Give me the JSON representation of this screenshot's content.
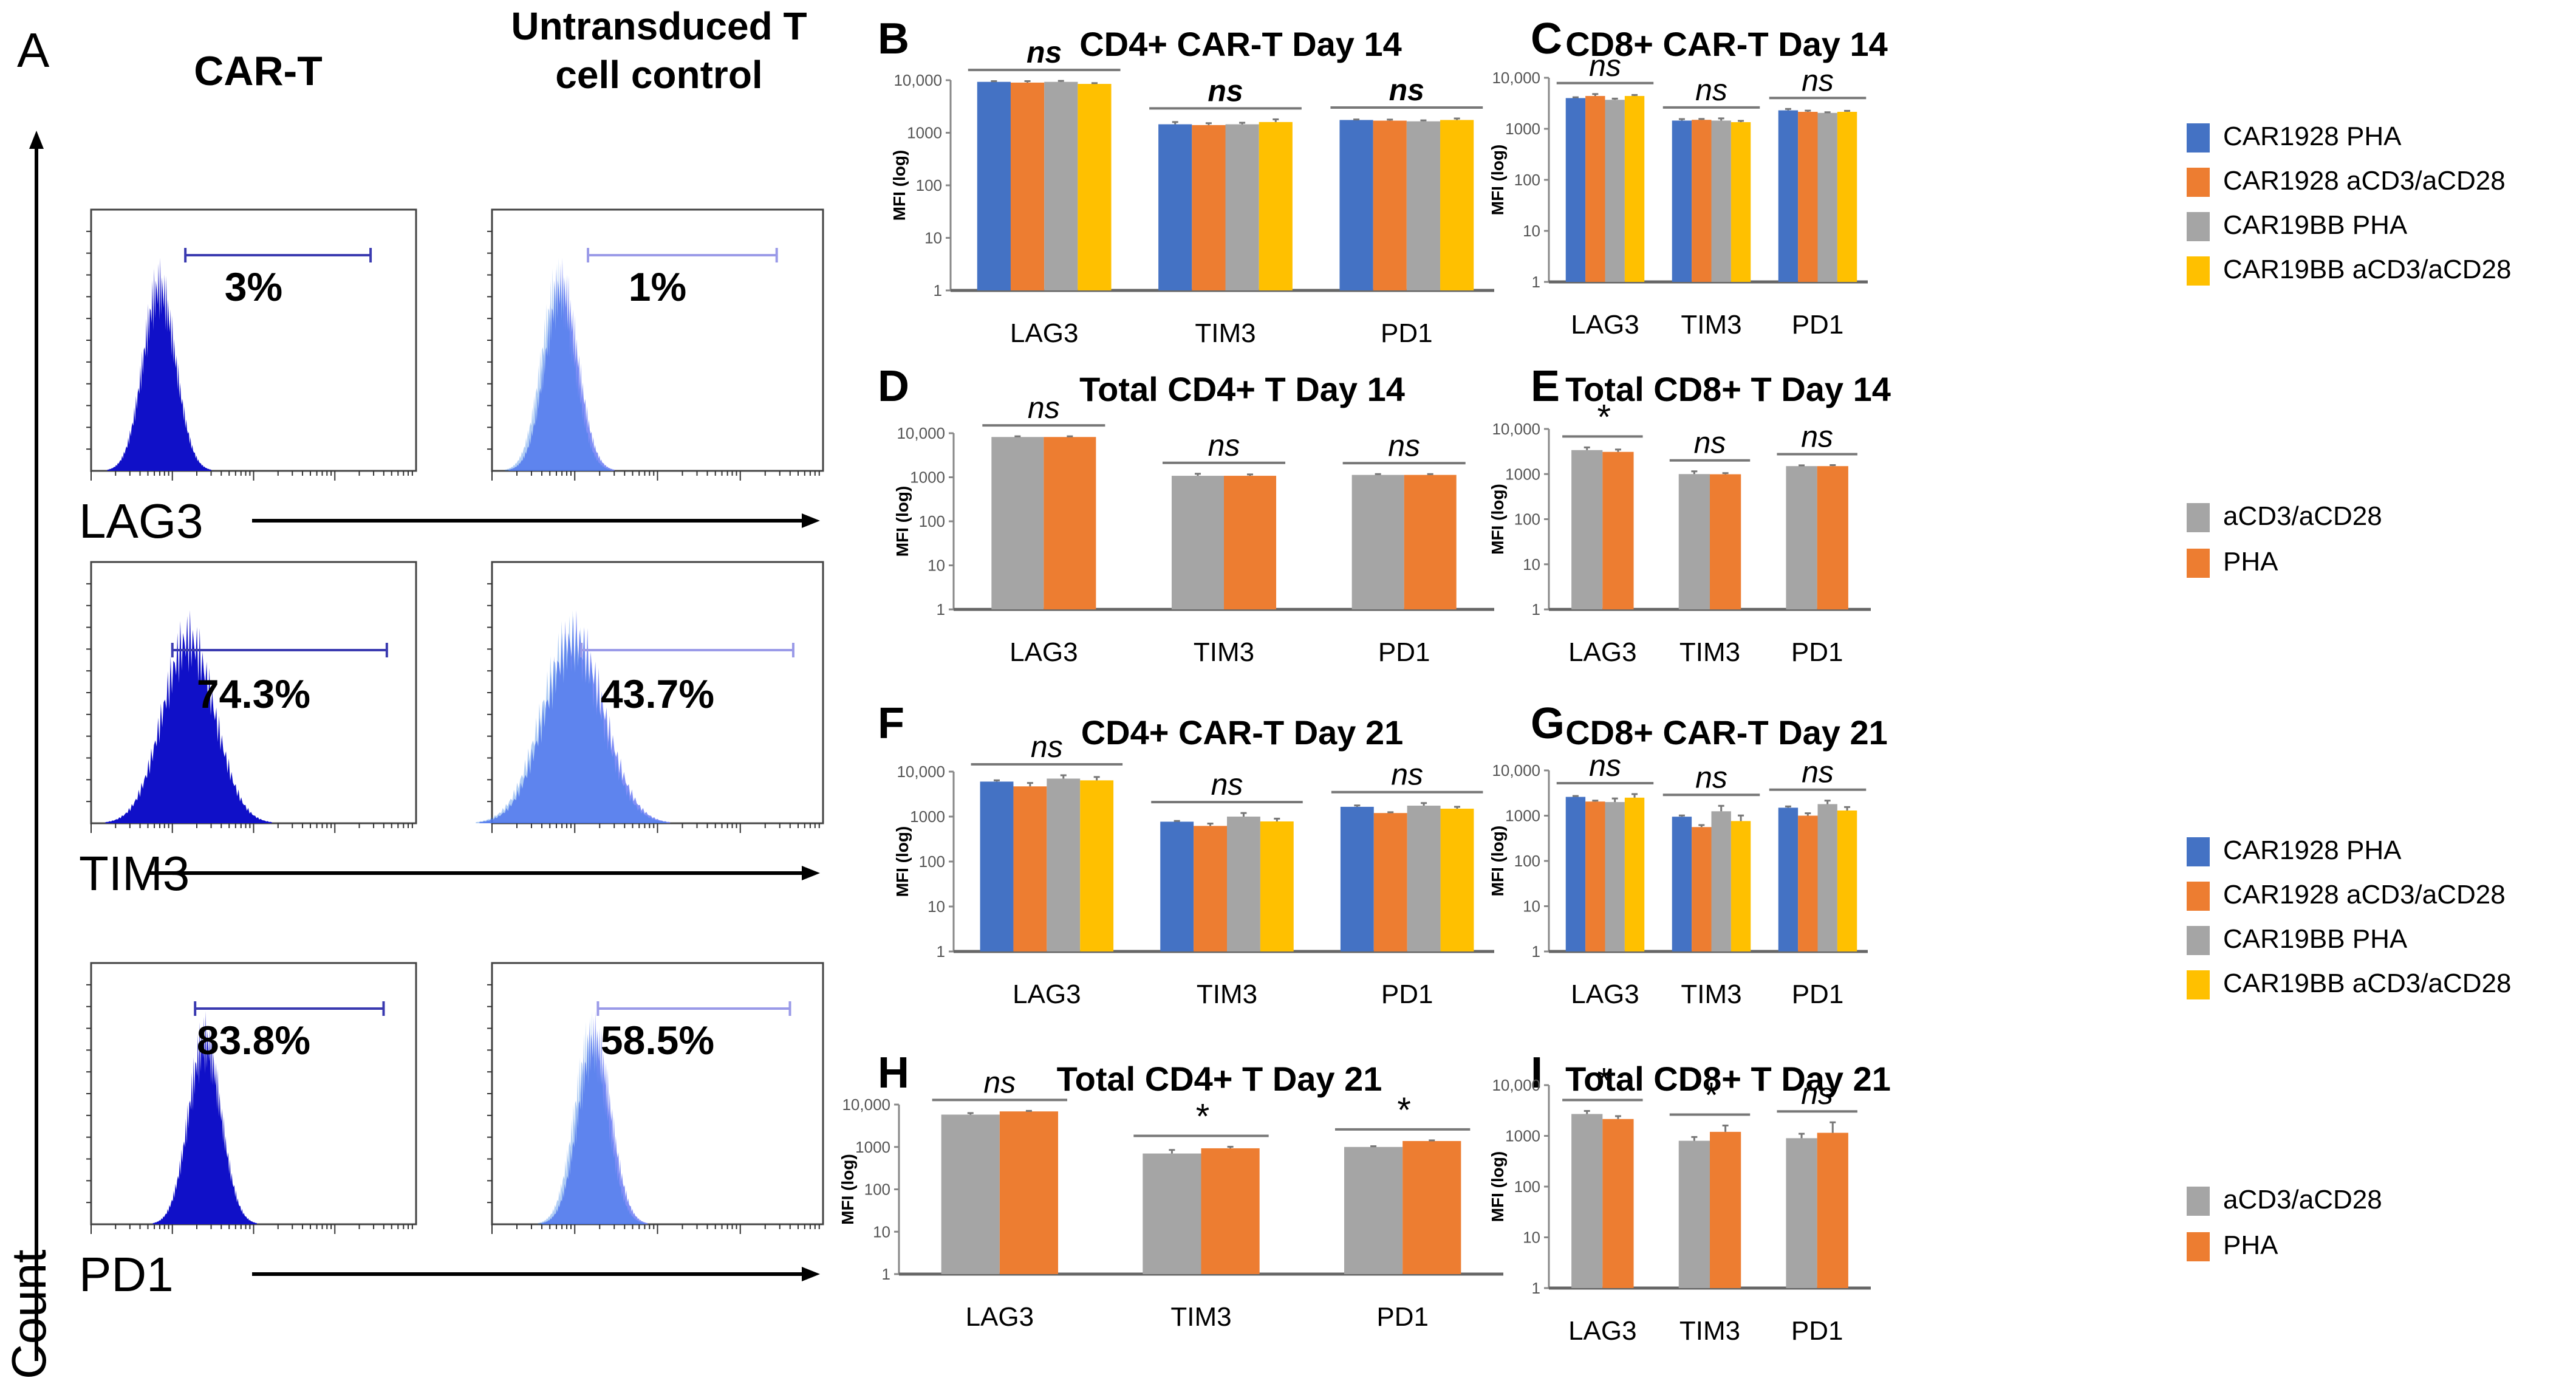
{
  "figure": {
    "panel_a": {
      "letter": "A",
      "col_headers": [
        "CAR-T",
        "Untransduced T cell control"
      ],
      "col_header_lines": [
        [
          "CAR-T"
        ],
        [
          "Untransduced T",
          "cell control"
        ]
      ],
      "y_axis_label": "Count",
      "rows": [
        {
          "marker": "LAG3",
          "car_t_percent": "3%",
          "control_percent": "1%"
        },
        {
          "marker": "TIM3",
          "car_t_percent": "74.3%",
          "control_percent": "43.7%"
        },
        {
          "marker": "PD1",
          "car_t_percent": "83.8%",
          "control_percent": "58.5%"
        }
      ]
    },
    "legends": {
      "four_group": [
        "CAR1928 PHA",
        "CAR1928 aCD3/aCD28",
        "CAR19BB PHA",
        "CAR19BB aCD3/aCD28"
      ],
      "two_group": [
        "aCD3/aCD28",
        "PHA"
      ]
    },
    "colors": {
      "CAR1928 PHA": "#4472C4",
      "CAR1928 aCD3/aCD28": "#ED7D31",
      "CAR19BB PHA": "#A5A5A5",
      "CAR19BB aCD3/aCD28": "#FFC000",
      "aCD3/aCD28": "#A5A5A5",
      "PHA": "#ED7D31",
      "car_t_histogram": "#1010C8",
      "control_histogram": "#6B7BF5"
    }
  },
  "chart_data": [
    {
      "panel": "B",
      "type": "bar",
      "title": "CD4+ CAR-T Day 14",
      "ylabel": "MFI (log)",
      "yscale": "log",
      "ylim": [
        1,
        10000
      ],
      "yticks": [
        "1",
        "10",
        "100",
        "1000",
        "10,000"
      ],
      "categories": [
        "LAG3",
        "TIM3",
        "PD1"
      ],
      "significance": [
        "ns",
        "ns",
        "ns"
      ],
      "series": [
        {
          "name": "CAR1928 PHA",
          "values": [
            9300,
            1450,
            1750
          ],
          "errors": [
            300,
            150,
            40
          ]
        },
        {
          "name": "CAR1928 aCD3/aCD28",
          "values": [
            9000,
            1400,
            1700
          ],
          "errors": [
            600,
            120,
            80
          ]
        },
        {
          "name": "CAR19BB PHA",
          "values": [
            9300,
            1450,
            1650
          ],
          "errors": [
            400,
            100,
            70
          ]
        },
        {
          "name": "CAR19BB aCD3/aCD28",
          "values": [
            8500,
            1600,
            1750
          ],
          "errors": [
            300,
            200,
            120
          ]
        }
      ],
      "legend": "none"
    },
    {
      "panel": "C",
      "type": "bar",
      "title": "CD8+ CAR-T Day 14",
      "ylabel": "MFI (log)",
      "yscale": "log",
      "ylim": [
        1,
        10000
      ],
      "yticks": [
        "1",
        "10",
        "100",
        "1000",
        "10,000"
      ],
      "categories": [
        "LAG3",
        "TIM3",
        "PD1"
      ],
      "significance": [
        "ns",
        "ns",
        "ns"
      ],
      "series": [
        {
          "name": "CAR1928 PHA",
          "values": [
            4000,
            1450,
            2300
          ],
          "errors": [
            150,
            100,
            150
          ]
        },
        {
          "name": "CAR1928 aCD3/aCD28",
          "values": [
            4400,
            1500,
            2150
          ],
          "errors": [
            400,
            60,
            120
          ]
        },
        {
          "name": "CAR19BB PHA",
          "values": [
            3700,
            1450,
            2050
          ],
          "errors": [
            200,
            150,
            60
          ]
        },
        {
          "name": "CAR19BB aCD3/aCD28",
          "values": [
            4400,
            1350,
            2150
          ],
          "errors": [
            200,
            80,
            100
          ]
        }
      ],
      "legend": "right"
    },
    {
      "panel": "D",
      "type": "bar",
      "title": "Total CD4+ T Day 14",
      "ylabel": "MFI (log)",
      "yscale": "log",
      "ylim": [
        1,
        10000
      ],
      "yticks": [
        "1",
        "10",
        "100",
        "1000",
        "10,000"
      ],
      "categories": [
        "LAG3",
        "TIM3",
        "PD1"
      ],
      "significance": [
        "ns",
        "ns",
        "ns"
      ],
      "series": [
        {
          "name": "aCD3/aCD28",
          "values": [
            8200,
            1080,
            1130
          ],
          "errors": [
            300,
            120,
            50
          ]
        },
        {
          "name": "PHA",
          "values": [
            8200,
            1080,
            1130
          ],
          "errors": [
            300,
            80,
            50
          ]
        }
      ],
      "legend": "none"
    },
    {
      "panel": "E",
      "type": "bar",
      "title": "Total CD8+ T Day 14",
      "ylabel": "MFI (log)",
      "yscale": "log",
      "ylim": [
        1,
        10000
      ],
      "yticks": [
        "1",
        "10",
        "100",
        "1000",
        "10,000"
      ],
      "categories": [
        "LAG3",
        "TIM3",
        "PD1"
      ],
      "significance": [
        "*",
        "ns",
        "ns"
      ],
      "series": [
        {
          "name": "aCD3/aCD28",
          "values": [
            3400,
            1000,
            1500
          ],
          "errors": [
            500,
            150,
            60
          ]
        },
        {
          "name": "PHA",
          "values": [
            3100,
            990,
            1500
          ],
          "errors": [
            400,
            60,
            80
          ]
        }
      ],
      "legend": "right"
    },
    {
      "panel": "F",
      "type": "bar",
      "title": "CD4+ CAR-T Day 21",
      "ylabel": "MFI (log)",
      "yscale": "log",
      "ylim": [
        1,
        10000
      ],
      "yticks": [
        "1",
        "10",
        "100",
        "1000",
        "10,000"
      ],
      "categories": [
        "LAG3",
        "TIM3",
        "PD1"
      ],
      "significance": [
        "ns",
        "ns",
        "ns"
      ],
      "series": [
        {
          "name": "CAR1928 PHA",
          "values": [
            6000,
            770,
            1650
          ],
          "errors": [
            400,
            30,
            120
          ]
        },
        {
          "name": "CAR1928 aCD3/aCD28",
          "values": [
            4700,
            620,
            1200
          ],
          "errors": [
            900,
            80,
            50
          ]
        },
        {
          "name": "CAR19BB PHA",
          "values": [
            7000,
            1000,
            1750
          ],
          "errors": [
            1300,
            200,
            250
          ]
        },
        {
          "name": "CAR19BB aCD3/aCD28",
          "values": [
            6400,
            780,
            1500
          ],
          "errors": [
            1200,
            120,
            150
          ]
        }
      ],
      "legend": "none"
    },
    {
      "panel": "G",
      "type": "bar",
      "title": "CD8+ CAR-T Day 21",
      "ylabel": "MFI (log)",
      "yscale": "log",
      "ylim": [
        1,
        10000
      ],
      "yticks": [
        "1",
        "10",
        "100",
        "1000",
        "10,000"
      ],
      "categories": [
        "LAG3",
        "TIM3",
        "PD1"
      ],
      "significance": [
        "ns",
        "ns",
        "ns"
      ],
      "series": [
        {
          "name": "CAR1928 PHA",
          "values": [
            2600,
            950,
            1500
          ],
          "errors": [
            120,
            60,
            100
          ]
        },
        {
          "name": "CAR1928 aCD3/aCD28",
          "values": [
            2050,
            560,
            1000
          ],
          "errors": [
            100,
            60,
            130
          ]
        },
        {
          "name": "CAR19BB PHA",
          "values": [
            2000,
            1250,
            1800
          ],
          "errors": [
            400,
            400,
            350
          ]
        },
        {
          "name": "CAR19BB aCD3/aCD28",
          "values": [
            2500,
            760,
            1300
          ],
          "errors": [
            500,
            250,
            250
          ]
        }
      ],
      "legend": "right"
    },
    {
      "panel": "H",
      "type": "bar",
      "title": "Total CD4+ T Day 21",
      "ylabel": "MFI (log)",
      "yscale": "log",
      "ylim": [
        1,
        10000
      ],
      "yticks": [
        "1",
        "10",
        "100",
        "1000",
        "10,000"
      ],
      "categories": [
        "LAG3",
        "TIM3",
        "PD1"
      ],
      "significance": [
        "ns",
        "*",
        "*"
      ],
      "series": [
        {
          "name": "aCD3/aCD28",
          "values": [
            5800,
            700,
            1000
          ],
          "errors": [
            500,
            150,
            40
          ]
        },
        {
          "name": "PHA",
          "values": [
            6900,
            930,
            1380
          ],
          "errors": [
            200,
            80,
            50
          ]
        }
      ],
      "legend": "none"
    },
    {
      "panel": "I",
      "type": "bar",
      "title": "Total CD8+ T Day 21",
      "ylabel": "MFI (log)",
      "yscale": "log",
      "ylim": [
        1,
        10000
      ],
      "yticks": [
        "1",
        "10",
        "100",
        "1000",
        "10,000"
      ],
      "categories": [
        "LAG3",
        "TIM3",
        "PD1"
      ],
      "significance": [
        "*",
        "*",
        "ns"
      ],
      "series": [
        {
          "name": "aCD3/aCD28",
          "values": [
            2700,
            800,
            900
          ],
          "errors": [
            400,
            150,
            200
          ]
        },
        {
          "name": "PHA",
          "values": [
            2150,
            1200,
            1150
          ],
          "errors": [
            300,
            400,
            700
          ]
        }
      ],
      "legend": "right"
    }
  ]
}
